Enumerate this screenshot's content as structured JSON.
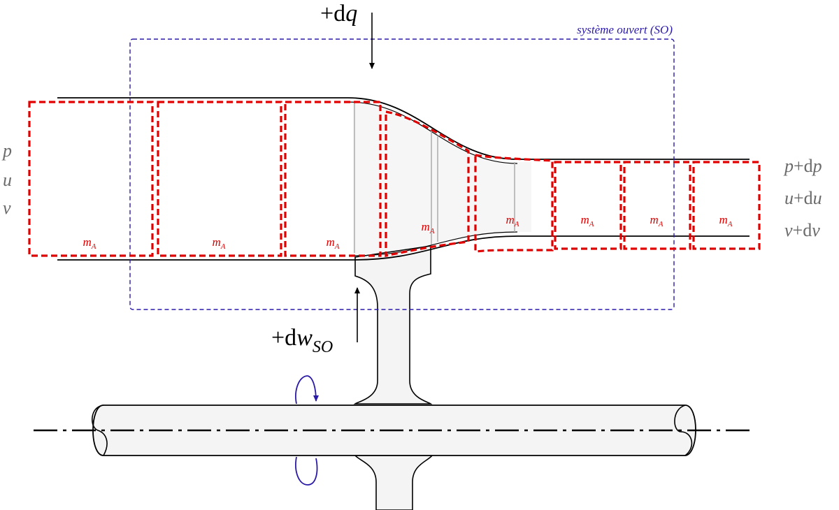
{
  "system_label": "système ouvert (SO)",
  "heat_label": {
    "prefix": "+d",
    "var": "q"
  },
  "work_label": {
    "prefix": "+d",
    "var": "w",
    "sub": "SO"
  },
  "mass_label": {
    "var": "m",
    "sub": "A"
  },
  "inlet_state": [
    "p",
    "u",
    "v"
  ],
  "outlet_state": [
    {
      "var": "p",
      "op": "+d",
      "var2": "p"
    },
    {
      "var": "u",
      "op": "+d",
      "var2": "u"
    },
    {
      "var": "v",
      "op": "+d",
      "var2": "v"
    }
  ],
  "colors": {
    "mass_boxes": "#e00000",
    "system_boundary": "#2a1aa8",
    "rotation_arrow": "#2a1aa8",
    "flow_fill": "#f6f6f6",
    "state_text": "#6b6b6b"
  }
}
